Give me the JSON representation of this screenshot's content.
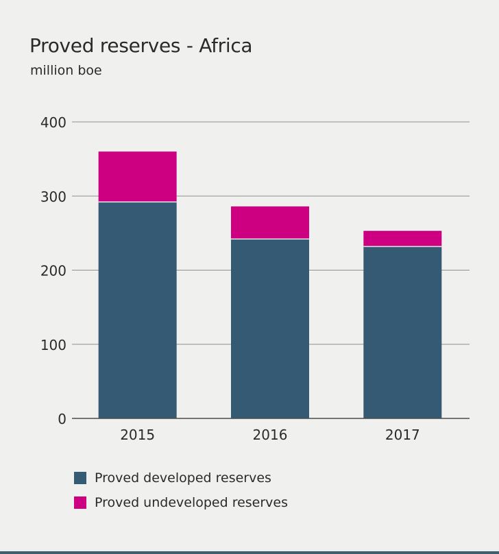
{
  "chart_data": {
    "type": "bar",
    "stacked": true,
    "title": "Proved reserves - Africa",
    "subtitle": "million boe",
    "categories": [
      "2015",
      "2016",
      "2017"
    ],
    "series": [
      {
        "name": "Proved developed reserves",
        "color": "#355a74",
        "values": [
          292,
          242,
          232
        ]
      },
      {
        "name": "Proved undeveloped reserves",
        "color": "#cc0080",
        "values": [
          68,
          44,
          21
        ]
      }
    ],
    "ylim": [
      0,
      400
    ],
    "yticks": [
      0,
      100,
      200,
      300,
      400
    ],
    "grid": true,
    "legend": "bottom-left"
  }
}
